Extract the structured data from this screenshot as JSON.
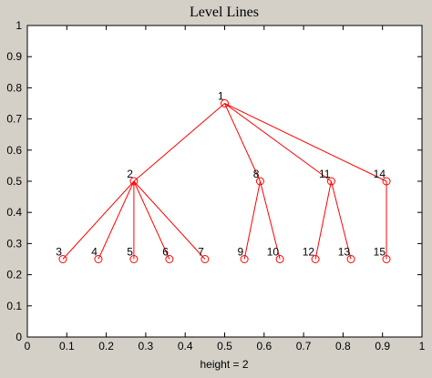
{
  "chart_data": {
    "type": "tree",
    "title": "Level Lines",
    "x_label": "height = 2",
    "color": "#ff0000",
    "nodes": [
      {
        "label": "1",
        "x": 0.5,
        "y": 0.75
      },
      {
        "label": "2",
        "x": 0.27,
        "y": 0.5
      },
      {
        "label": "3",
        "x": 0.09,
        "y": 0.25
      },
      {
        "label": "4",
        "x": 0.18,
        "y": 0.25
      },
      {
        "label": "5",
        "x": 0.27,
        "y": 0.25
      },
      {
        "label": "6",
        "x": 0.36,
        "y": 0.25
      },
      {
        "label": "7",
        "x": 0.45,
        "y": 0.25
      },
      {
        "label": "8",
        "x": 0.59,
        "y": 0.5
      },
      {
        "label": "9",
        "x": 0.55,
        "y": 0.25
      },
      {
        "label": "10",
        "x": 0.64,
        "y": 0.25
      },
      {
        "label": "11",
        "x": 0.77,
        "y": 0.5
      },
      {
        "label": "12",
        "x": 0.73,
        "y": 0.25
      },
      {
        "label": "13",
        "x": 0.82,
        "y": 0.25
      },
      {
        "label": "14",
        "x": 0.91,
        "y": 0.5
      },
      {
        "label": "15",
        "x": 0.91,
        "y": 0.25
      }
    ],
    "edges": [
      [
        0,
        1
      ],
      [
        1,
        2
      ],
      [
        1,
        3
      ],
      [
        1,
        4
      ],
      [
        1,
        5
      ],
      [
        1,
        6
      ],
      [
        0,
        7
      ],
      [
        7,
        8
      ],
      [
        7,
        9
      ],
      [
        0,
        10
      ],
      [
        10,
        11
      ],
      [
        10,
        12
      ],
      [
        0,
        13
      ],
      [
        13,
        14
      ]
    ],
    "xlim": [
      0,
      1
    ],
    "ylim": [
      0,
      1
    ],
    "xticks": [
      0,
      0.1,
      0.2,
      0.3,
      0.4,
      0.5,
      0.6,
      0.7,
      0.8,
      0.9,
      1
    ],
    "yticks": [
      0,
      0.1,
      0.2,
      0.3,
      0.4,
      0.5,
      0.6,
      0.7,
      0.8,
      0.9,
      1
    ]
  }
}
